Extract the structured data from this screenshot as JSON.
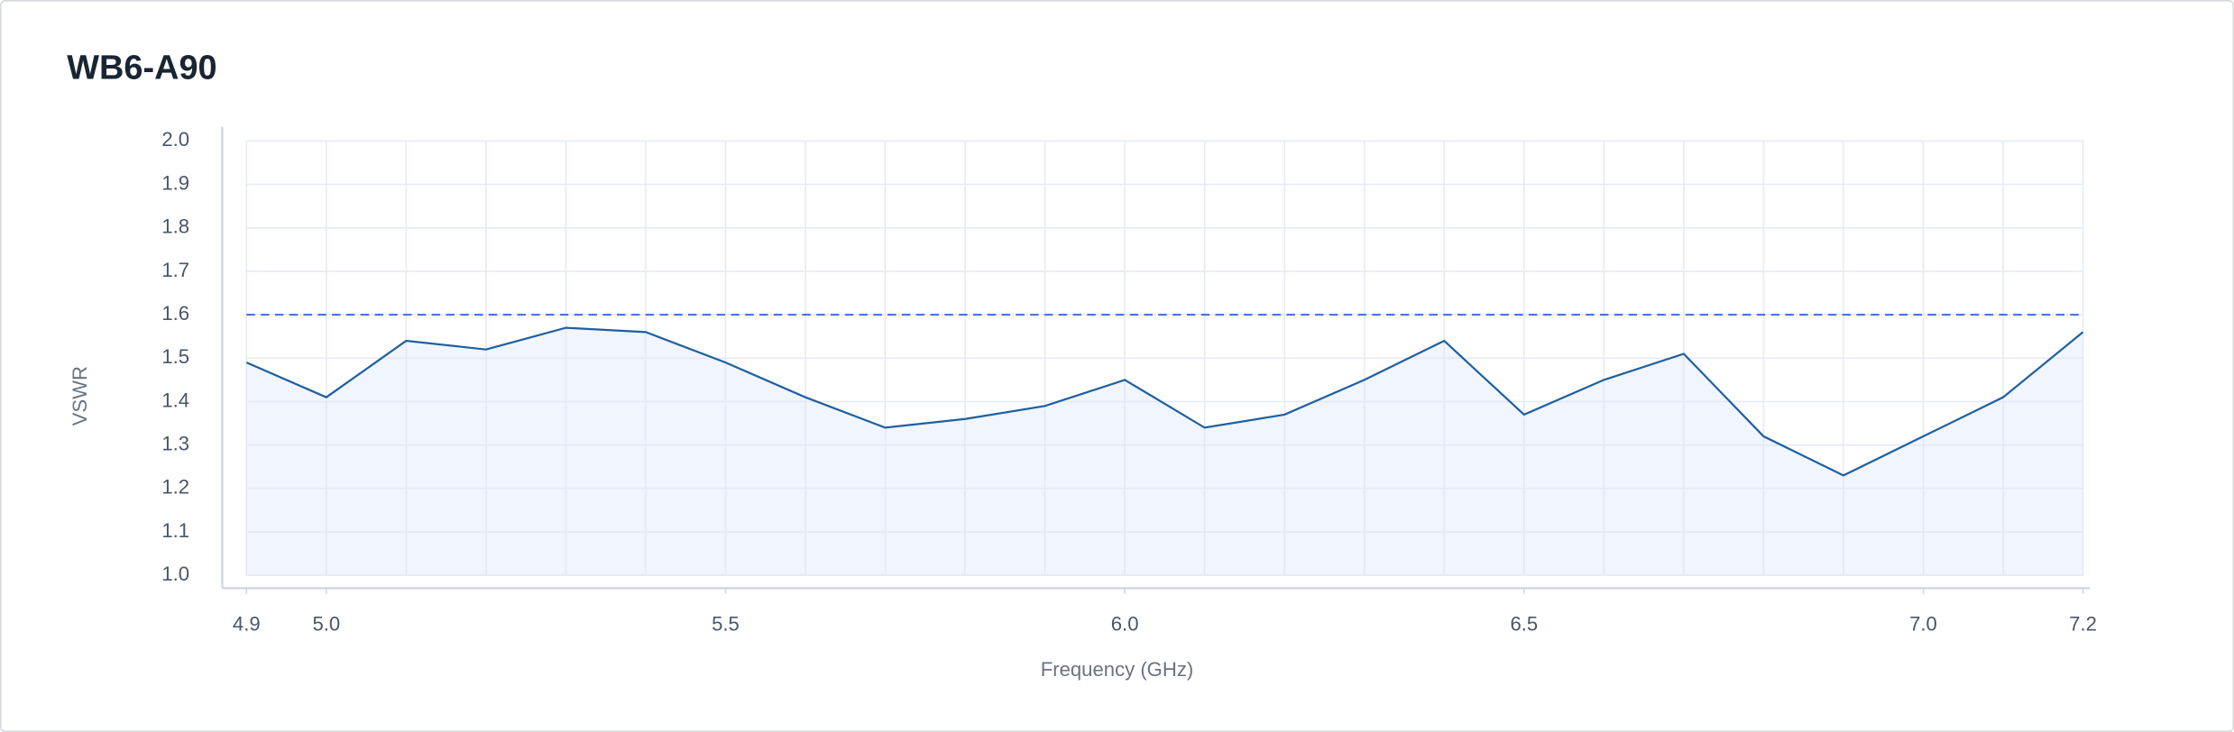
{
  "chart_data": {
    "type": "line",
    "title": "WB6-A90",
    "x_label": "Frequency (GHz)",
    "y_label": "VSWR",
    "x": [
      4.9,
      5.0,
      5.1,
      5.2,
      5.3,
      5.4,
      5.5,
      5.6,
      5.7,
      5.8,
      5.9,
      6.0,
      6.1,
      6.2,
      6.3,
      6.4,
      6.5,
      6.6,
      6.7,
      6.8,
      6.9,
      7.0,
      7.1,
      7.2
    ],
    "series": [
      {
        "name": "VSWR",
        "color": "#1f5fa0",
        "values": [
          1.49,
          1.41,
          1.54,
          1.52,
          1.57,
          1.56,
          1.49,
          1.41,
          1.34,
          1.36,
          1.39,
          1.45,
          1.34,
          1.37,
          1.45,
          1.54,
          1.37,
          1.45,
          1.51,
          1.32,
          1.23,
          1.32,
          1.41,
          1.56
        ]
      }
    ],
    "threshold": 1.6,
    "threshold_color": "#3b6fd4",
    "xlim": [
      4.9,
      7.2
    ],
    "xticks": [
      4.9,
      {
        "value": 5,
        "label": "5.0"
      },
      5.5,
      {
        "value": 6,
        "label": "6.0"
      },
      6.5,
      {
        "value": 7,
        "label": "7.0"
      },
      7.2
    ],
    "ylim": [
      1,
      2
    ],
    "yticks": [
      {
        "value": 1,
        "label": "1.0"
      },
      1.1,
      1.2,
      1.3,
      1.4,
      1.5,
      1.6,
      1.7,
      1.8,
      1.9,
      {
        "value": 2,
        "label": "2.0"
      }
    ],
    "grid": true
  }
}
